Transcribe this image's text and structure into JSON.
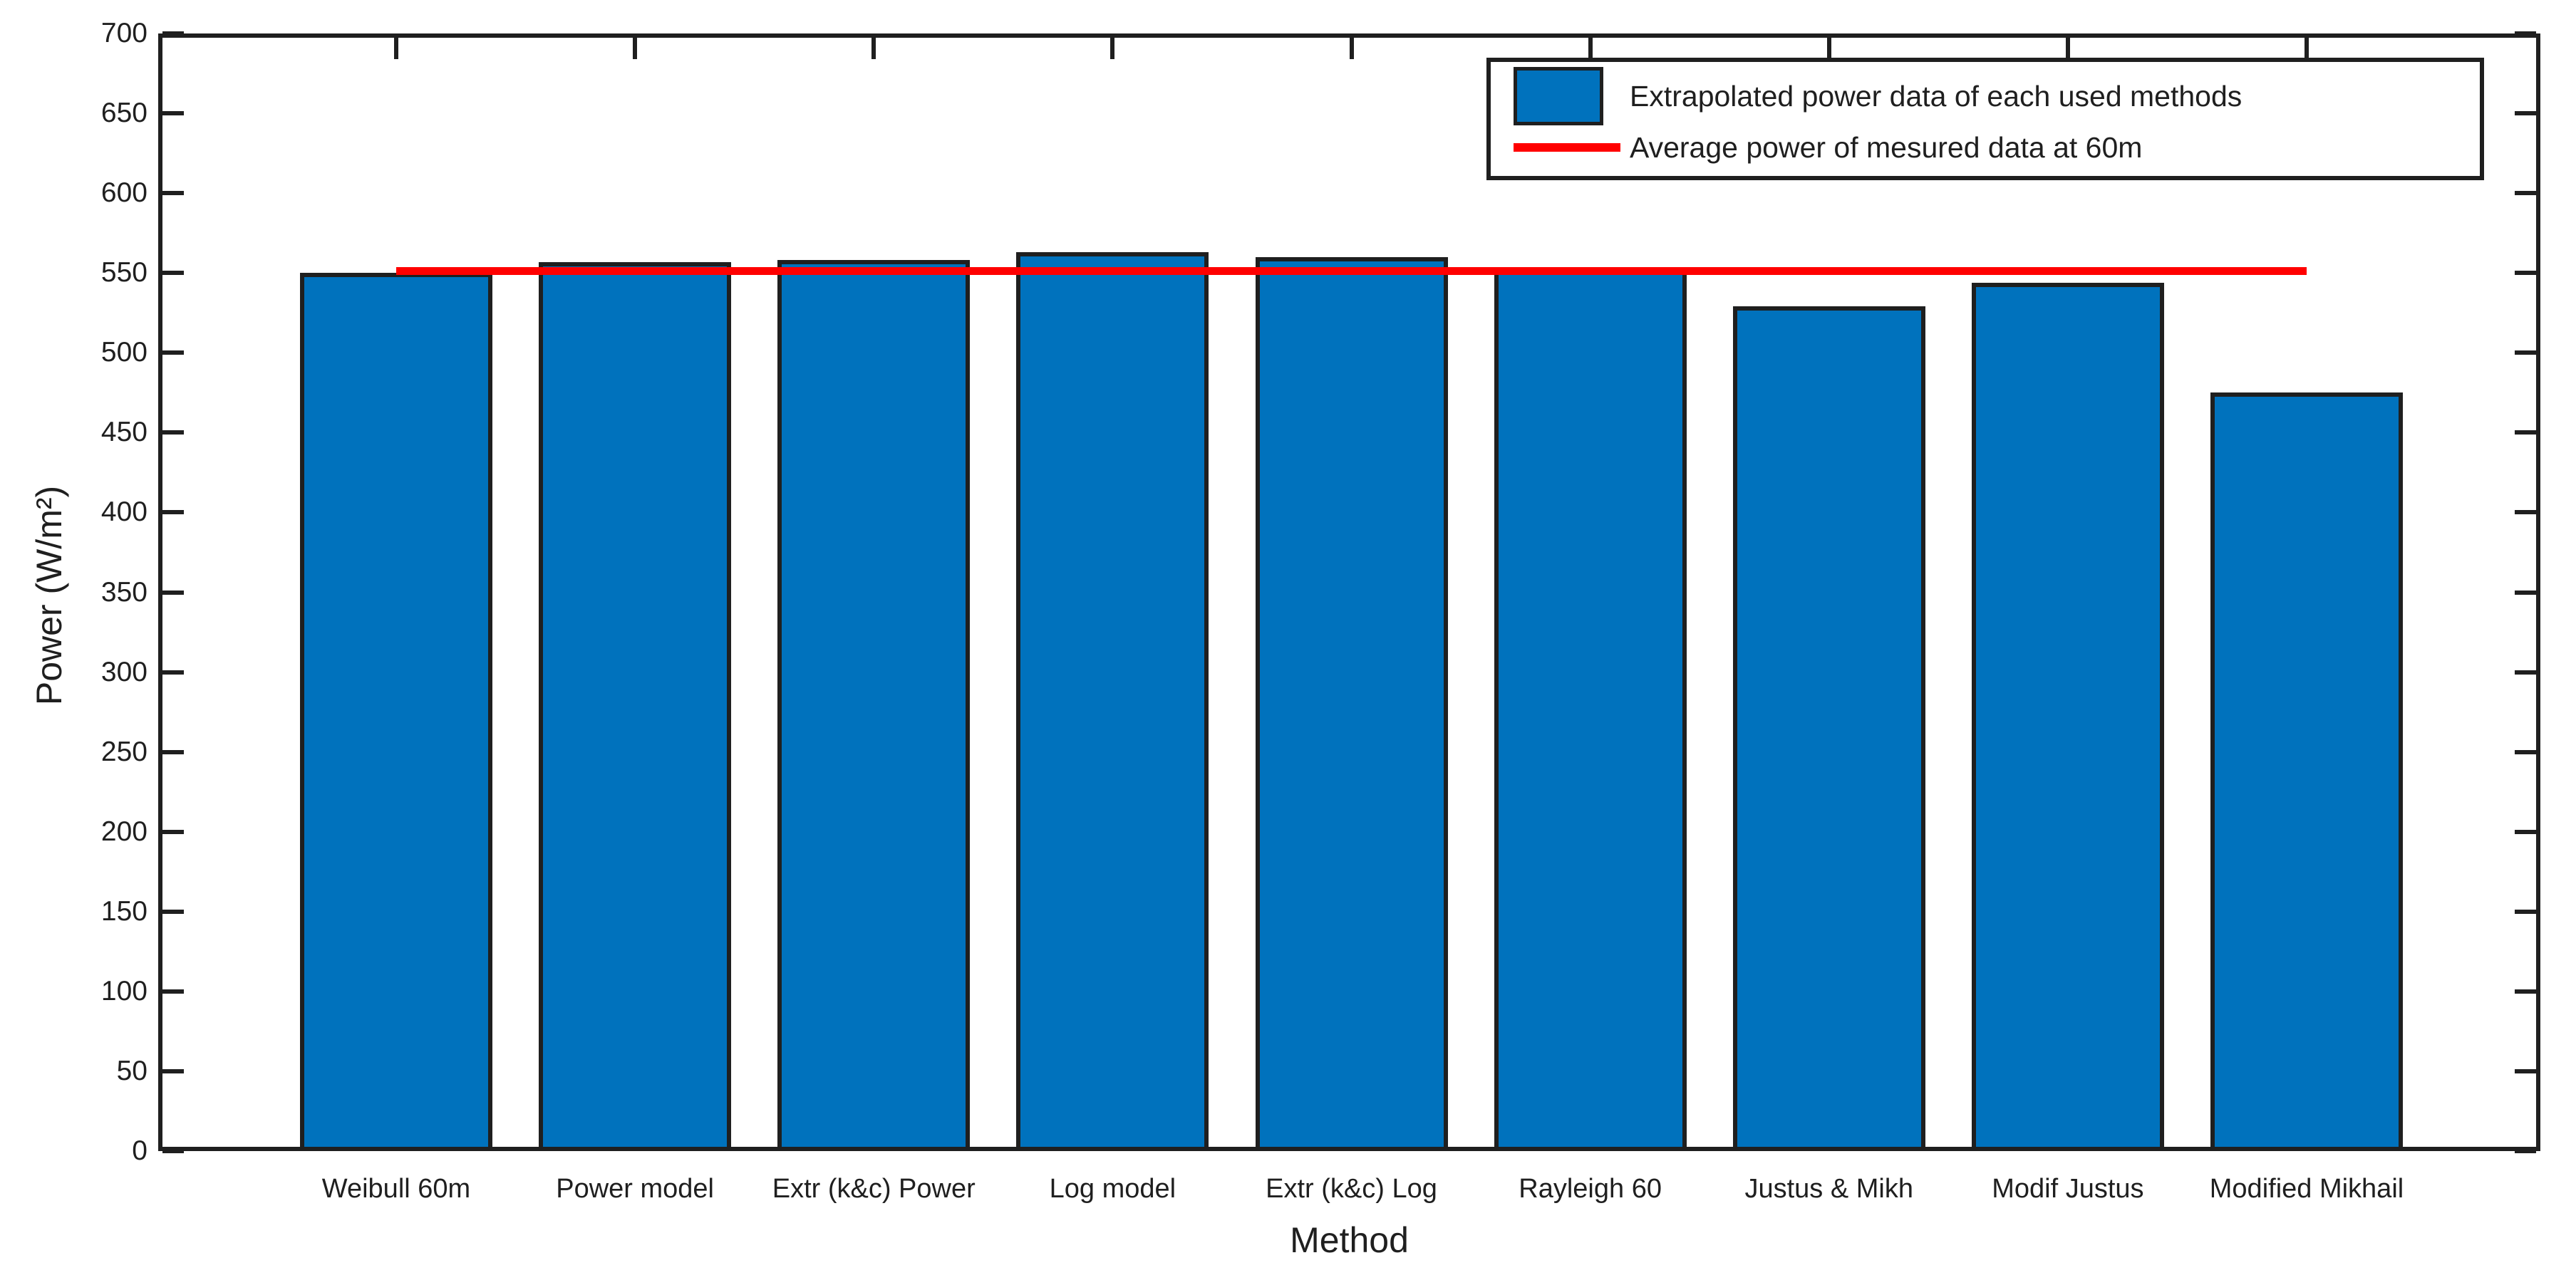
{
  "figure": {
    "background_color": "#ffffff",
    "axis_color": "#1f1f1f",
    "text_color": "#1f1f1f"
  },
  "chart_data": {
    "type": "bar",
    "title": "",
    "xlabel": "Method",
    "ylabel": "Power (W/m²)",
    "categories": [
      "Weibull 60m",
      "Power model",
      "Extr (k&c) Power",
      "Log model",
      "Extr (k&c) Log",
      "Rayleigh 60",
      "Justus & Mikh",
      "Modif Justus",
      "Modified Mikhail"
    ],
    "values": [
      550,
      557,
      558,
      563,
      560,
      552,
      529,
      544,
      475
    ],
    "series_name": "Extrapolated power data of each used methods",
    "avg_line": {
      "label": "Average power of mesured data at 60m",
      "value": 551,
      "color": "#FF0000"
    },
    "bar_color": "#0072BD",
    "ylim": [
      0,
      700
    ],
    "yticks": [
      0,
      50,
      100,
      150,
      200,
      250,
      300,
      350,
      400,
      450,
      500,
      550,
      600,
      650,
      700
    ],
    "grid": false,
    "legend_position": "top-right",
    "legend": [
      {
        "type": "bar",
        "label": "Extrapolated power data of each used methods"
      },
      {
        "type": "line",
        "label": "Average power of mesured data at 60m"
      }
    ]
  }
}
